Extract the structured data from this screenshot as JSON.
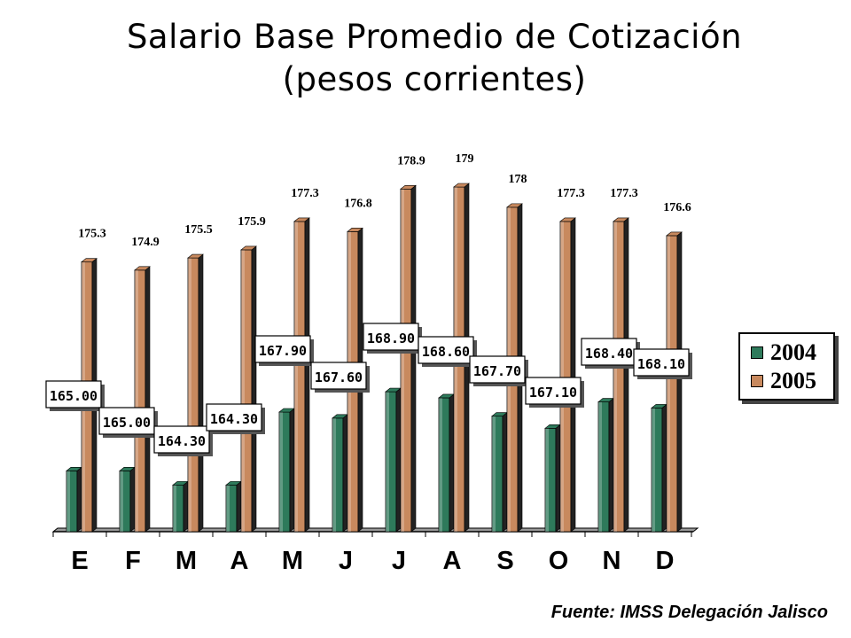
{
  "title_line1": "Salario Base Promedio de Cotización",
  "title_line2": "(pesos corrientes)",
  "source": "Fuente: IMSS Delegación Jalisco",
  "colors": {
    "series_2004": "#2e7a5b",
    "series_2005": "#c8895e"
  },
  "chart_data": {
    "type": "bar",
    "categories": [
      "E",
      "F",
      "M",
      "A",
      "M",
      "J",
      "J",
      "A",
      "S",
      "O",
      "N",
      "D"
    ],
    "series": [
      {
        "name": "2004",
        "values": [
          165.0,
          165.0,
          164.3,
          164.3,
          167.9,
          167.6,
          168.9,
          168.6,
          167.7,
          167.1,
          168.4,
          168.1
        ],
        "labels": [
          "165.00",
          "165.00",
          "164.30",
          "164.30",
          "167.90",
          "167.60",
          "168.90",
          "168.60",
          "167.70",
          "167.10",
          "168.40",
          "168.10"
        ]
      },
      {
        "name": "2005",
        "values": [
          175.3,
          174.9,
          175.5,
          175.9,
          177.3,
          176.8,
          178.9,
          179,
          178,
          177.3,
          177.3,
          176.6
        ],
        "labels": [
          "175.3",
          "174.9",
          "175.5",
          "175.9",
          "177.3",
          "176.8",
          "178.9",
          "179",
          "178",
          "177.3",
          "177.3",
          "176.6"
        ]
      }
    ],
    "title": "Salario Base Promedio de Cotización (pesos corrientes)",
    "xlabel": "",
    "ylabel": "",
    "legend": "right",
    "grid": false
  }
}
